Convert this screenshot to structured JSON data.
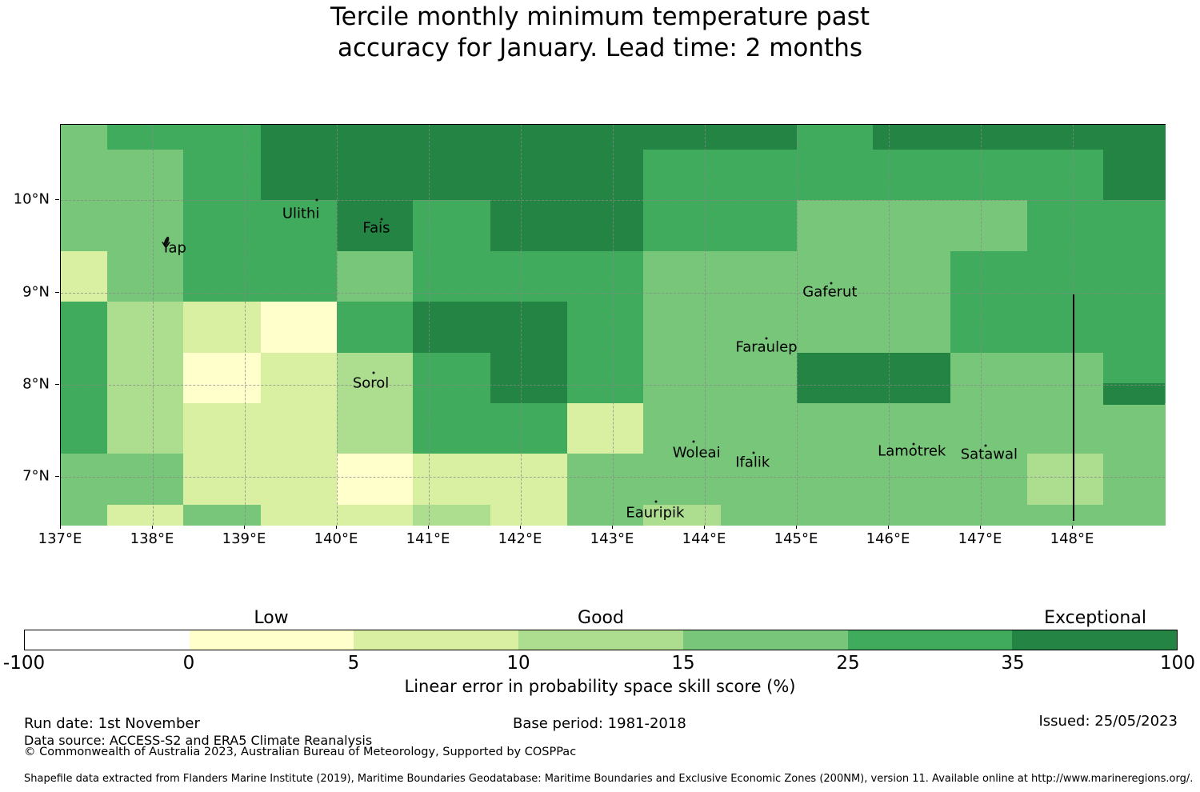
{
  "title": {
    "line1": "Tercile monthly minimum temperature past",
    "line2": "accuracy for January. Lead time: 2 months"
  },
  "footer": {
    "run_date": "Run date: 1st November",
    "base_period": "Base period: 1981-2018",
    "issued": "Issued: 25/05/2023",
    "data_source": "Data source: ACCESS-S2 and ERA5 Climate Reanalysis",
    "copyright": "© Commonwealth of Australia 2023, Australian Bureau of Meteorology, Supported by COSPPac",
    "shapefile_note": "Shapefile data extracted from Flanders Marine Institute (2019), Maritime Boundaries Geodatabase: Maritime Boundaries and Exclusive Economic Zones (200NM), version 11. Available online at http://www.marineregions.org/."
  },
  "chart_data": {
    "type": "heatmap",
    "title": "Tercile monthly minimum temperature past accuracy for January. Lead time: 2 months",
    "legend": {
      "axis_label": "Linear error in probability space skill score (%)",
      "boundaries": [
        -100,
        0,
        5,
        10,
        15,
        25,
        35,
        100
      ],
      "colors": [
        "#ffffff",
        "#ffffcc",
        "#d9f0a3",
        "#addd8e",
        "#78c679",
        "#41ab5d",
        "#238443"
      ],
      "category_labels": [
        "Low",
        "Good",
        "Exceptional"
      ],
      "category_label_segment": [
        1,
        3,
        6
      ]
    },
    "x_axis": {
      "tick_labels": [
        "137°E",
        "138°E",
        "139°E",
        "140°E",
        "141°E",
        "142°E",
        "143°E",
        "144°E",
        "145°E",
        "146°E",
        "147°E",
        "148°E"
      ],
      "tick_lons": [
        137,
        138,
        139,
        140,
        141,
        142,
        143,
        144,
        145,
        146,
        147,
        148
      ]
    },
    "y_axis": {
      "tick_labels": [
        "10°N",
        "9°N",
        "8°N",
        "7°N"
      ],
      "tick_lats": [
        10,
        9,
        8,
        7
      ]
    },
    "grid_model": {
      "lon_min": 137.0,
      "lon_max": 149.0,
      "lat_min": 6.48,
      "lat_max": 10.82,
      "col_bounds": [
        137.0,
        137.5,
        138.33,
        139.17,
        140.0,
        140.83,
        141.67,
        142.5,
        143.33,
        144.17,
        145.0,
        145.83,
        146.67,
        147.5,
        148.33,
        149.0
      ],
      "row_bounds": [
        10.82,
        10.55,
        10.0,
        9.45,
        8.9,
        8.35,
        7.8,
        7.25,
        6.7,
        6.48
      ],
      "bin_grid": [
        [
          4,
          5,
          5,
          6,
          6,
          6,
          6,
          6,
          6,
          6,
          5,
          6,
          6,
          6,
          6
        ],
        [
          4,
          4,
          5,
          6,
          6,
          6,
          6,
          6,
          5,
          5,
          5,
          5,
          5,
          5,
          6
        ],
        [
          4,
          4,
          5,
          5,
          6,
          5,
          6,
          6,
          5,
          5,
          4,
          4,
          4,
          5,
          5
        ],
        [
          2,
          4,
          5,
          5,
          4,
          5,
          5,
          5,
          4,
          4,
          4,
          4,
          5,
          5,
          5
        ],
        [
          5,
          3,
          2,
          1,
          5,
          6,
          6,
          5,
          4,
          4,
          4,
          4,
          5,
          5,
          5
        ],
        [
          5,
          3,
          1,
          2,
          3,
          5,
          6,
          5,
          4,
          4,
          6,
          6,
          4,
          4,
          5
        ],
        [
          5,
          3,
          2,
          2,
          3,
          5,
          5,
          2,
          4,
          4,
          4,
          4,
          4,
          4,
          4
        ],
        [
          4,
          4,
          2,
          2,
          1,
          2,
          2,
          4,
          4,
          4,
          4,
          4,
          4,
          3,
          4
        ],
        [
          4,
          2,
          4,
          2,
          2,
          3,
          2,
          4,
          3,
          4,
          4,
          4,
          4,
          4,
          4
        ]
      ],
      "extra_patches": [
        {
          "lon0": 148.33,
          "lon1": 149.0,
          "lat0": 7.78,
          "lat1": 8.02,
          "bin": 6
        }
      ]
    },
    "eez_line": {
      "lon": 148.0,
      "lat_top": 8.98,
      "lat_bottom": 6.52
    },
    "islands": [
      {
        "name": "Yap",
        "lon": 138.23,
        "lat": 9.48,
        "marker_lon": 138.15,
        "marker_lat": 9.55,
        "marker": "island"
      },
      {
        "name": "Ulithi",
        "lon": 139.61,
        "lat": 9.86,
        "marker_lon": 139.78,
        "marker_lat": 10.0,
        "marker": "dot"
      },
      {
        "name": "Fais",
        "lon": 140.43,
        "lat": 9.7,
        "marker_lon": 140.49,
        "marker_lat": 9.8,
        "marker": "dot"
      },
      {
        "name": "Sorol",
        "lon": 140.37,
        "lat": 8.02,
        "marker_lon": 140.4,
        "marker_lat": 8.13,
        "marker": "dot"
      },
      {
        "name": "Gaferut",
        "lon": 145.36,
        "lat": 9.01,
        "marker_lon": 145.37,
        "marker_lat": 9.1,
        "marker": "dot"
      },
      {
        "name": "Faraulep",
        "lon": 144.67,
        "lat": 8.41,
        "marker_lon": 144.67,
        "marker_lat": 8.5,
        "marker": "dot"
      },
      {
        "name": "Woleai",
        "lon": 143.91,
        "lat": 7.26,
        "marker_lon": 143.88,
        "marker_lat": 7.38,
        "marker": "dot"
      },
      {
        "name": "Ifalik",
        "lon": 144.52,
        "lat": 7.16,
        "marker_lon": 144.53,
        "marker_lat": 7.26,
        "marker": "dot"
      },
      {
        "name": "Eauripik",
        "lon": 143.46,
        "lat": 6.61,
        "marker_lon": 143.47,
        "marker_lat": 6.73,
        "marker": "dot"
      },
      {
        "name": "Lamotrek",
        "lon": 146.25,
        "lat": 7.28,
        "marker_lon": 146.27,
        "marker_lat": 7.36,
        "marker": "dot"
      },
      {
        "name": "Satawal",
        "lon": 147.09,
        "lat": 7.24,
        "marker_lon": 147.05,
        "marker_lat": 7.34,
        "marker": "dot"
      }
    ]
  }
}
